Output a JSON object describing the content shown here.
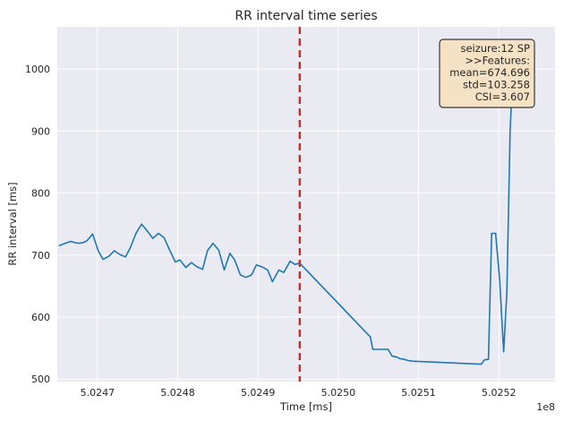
{
  "chart_data": {
    "type": "line",
    "title": "RR interval time series",
    "xlabel": "Time [ms]",
    "ylabel": "RR interval [ms]",
    "x_offset_label": "1e8",
    "xlim": [
      5.02465,
      5.02527
    ],
    "ylim": [
      496,
      1068
    ],
    "x_ticks": [
      5.0247,
      5.0248,
      5.0249,
      5.025,
      5.0251,
      5.0252
    ],
    "x_tick_labels": [
      "5.0247",
      "5.0248",
      "5.0249",
      "5.0250",
      "5.0251",
      "5.0252"
    ],
    "y_ticks": [
      500,
      600,
      700,
      800,
      900,
      1000
    ],
    "y_tick_labels": [
      "500",
      "600",
      "700",
      "800",
      "900",
      "1000"
    ],
    "grid": true,
    "background": "#eaeaf2",
    "series": [
      {
        "color": "#1f77b4",
        "x": [
          5.024652,
          5.024662,
          5.024667,
          5.024672,
          5.024677,
          5.024682,
          5.024687,
          5.024694,
          5.024701,
          5.024707,
          5.024714,
          5.024721,
          5.024728,
          5.024735,
          5.024741,
          5.024748,
          5.024755,
          5.024762,
          5.024769,
          5.024776,
          5.024783,
          5.02479,
          5.024797,
          5.024803,
          5.02481,
          5.024817,
          5.024824,
          5.024831,
          5.024837,
          5.024844,
          5.024851,
          5.024858,
          5.024865,
          5.024871,
          5.024878,
          5.024885,
          5.024892,
          5.024898,
          5.024905,
          5.024912,
          5.024918,
          5.024926,
          5.024932,
          5.02494,
          5.024946,
          5.024952,
          5.02504,
          5.025043,
          5.025062,
          5.025067,
          5.025072,
          5.025077,
          5.025082,
          5.025087,
          5.025092,
          5.025178,
          5.025182,
          5.025187,
          5.025191,
          5.025196,
          5.025201,
          5.025206,
          5.02521,
          5.025214,
          5.025218,
          5.025222
        ],
        "y": [
          715,
          720,
          722,
          720,
          719,
          720,
          723,
          734,
          707,
          693,
          698,
          707,
          701,
          697,
          712,
          735,
          750,
          739,
          727,
          735,
          728,
          708,
          689,
          692,
          680,
          688,
          681,
          677,
          707,
          719,
          708,
          676,
          703,
          692,
          668,
          664,
          668,
          684,
          681,
          676,
          657,
          676,
          672,
          690,
          685,
          687,
          568,
          548,
          548,
          537,
          536,
          533,
          532,
          530,
          529,
          524,
          531,
          532,
          735,
          735,
          661,
          544,
          641,
          900,
          1010,
          1040
        ]
      }
    ],
    "vlines": [
      {
        "x": 5.024952,
        "color": "#d62728",
        "style": "dashed"
      }
    ],
    "annotation": {
      "lines": [
        "seizure:12 SP",
        ">>Features:",
        "mean=674.696",
        "std=103.258",
        "CSI=3.607"
      ],
      "position": "top-right",
      "facecolor": "#f5e1c3",
      "edgecolor": "#3a3a3a"
    }
  }
}
